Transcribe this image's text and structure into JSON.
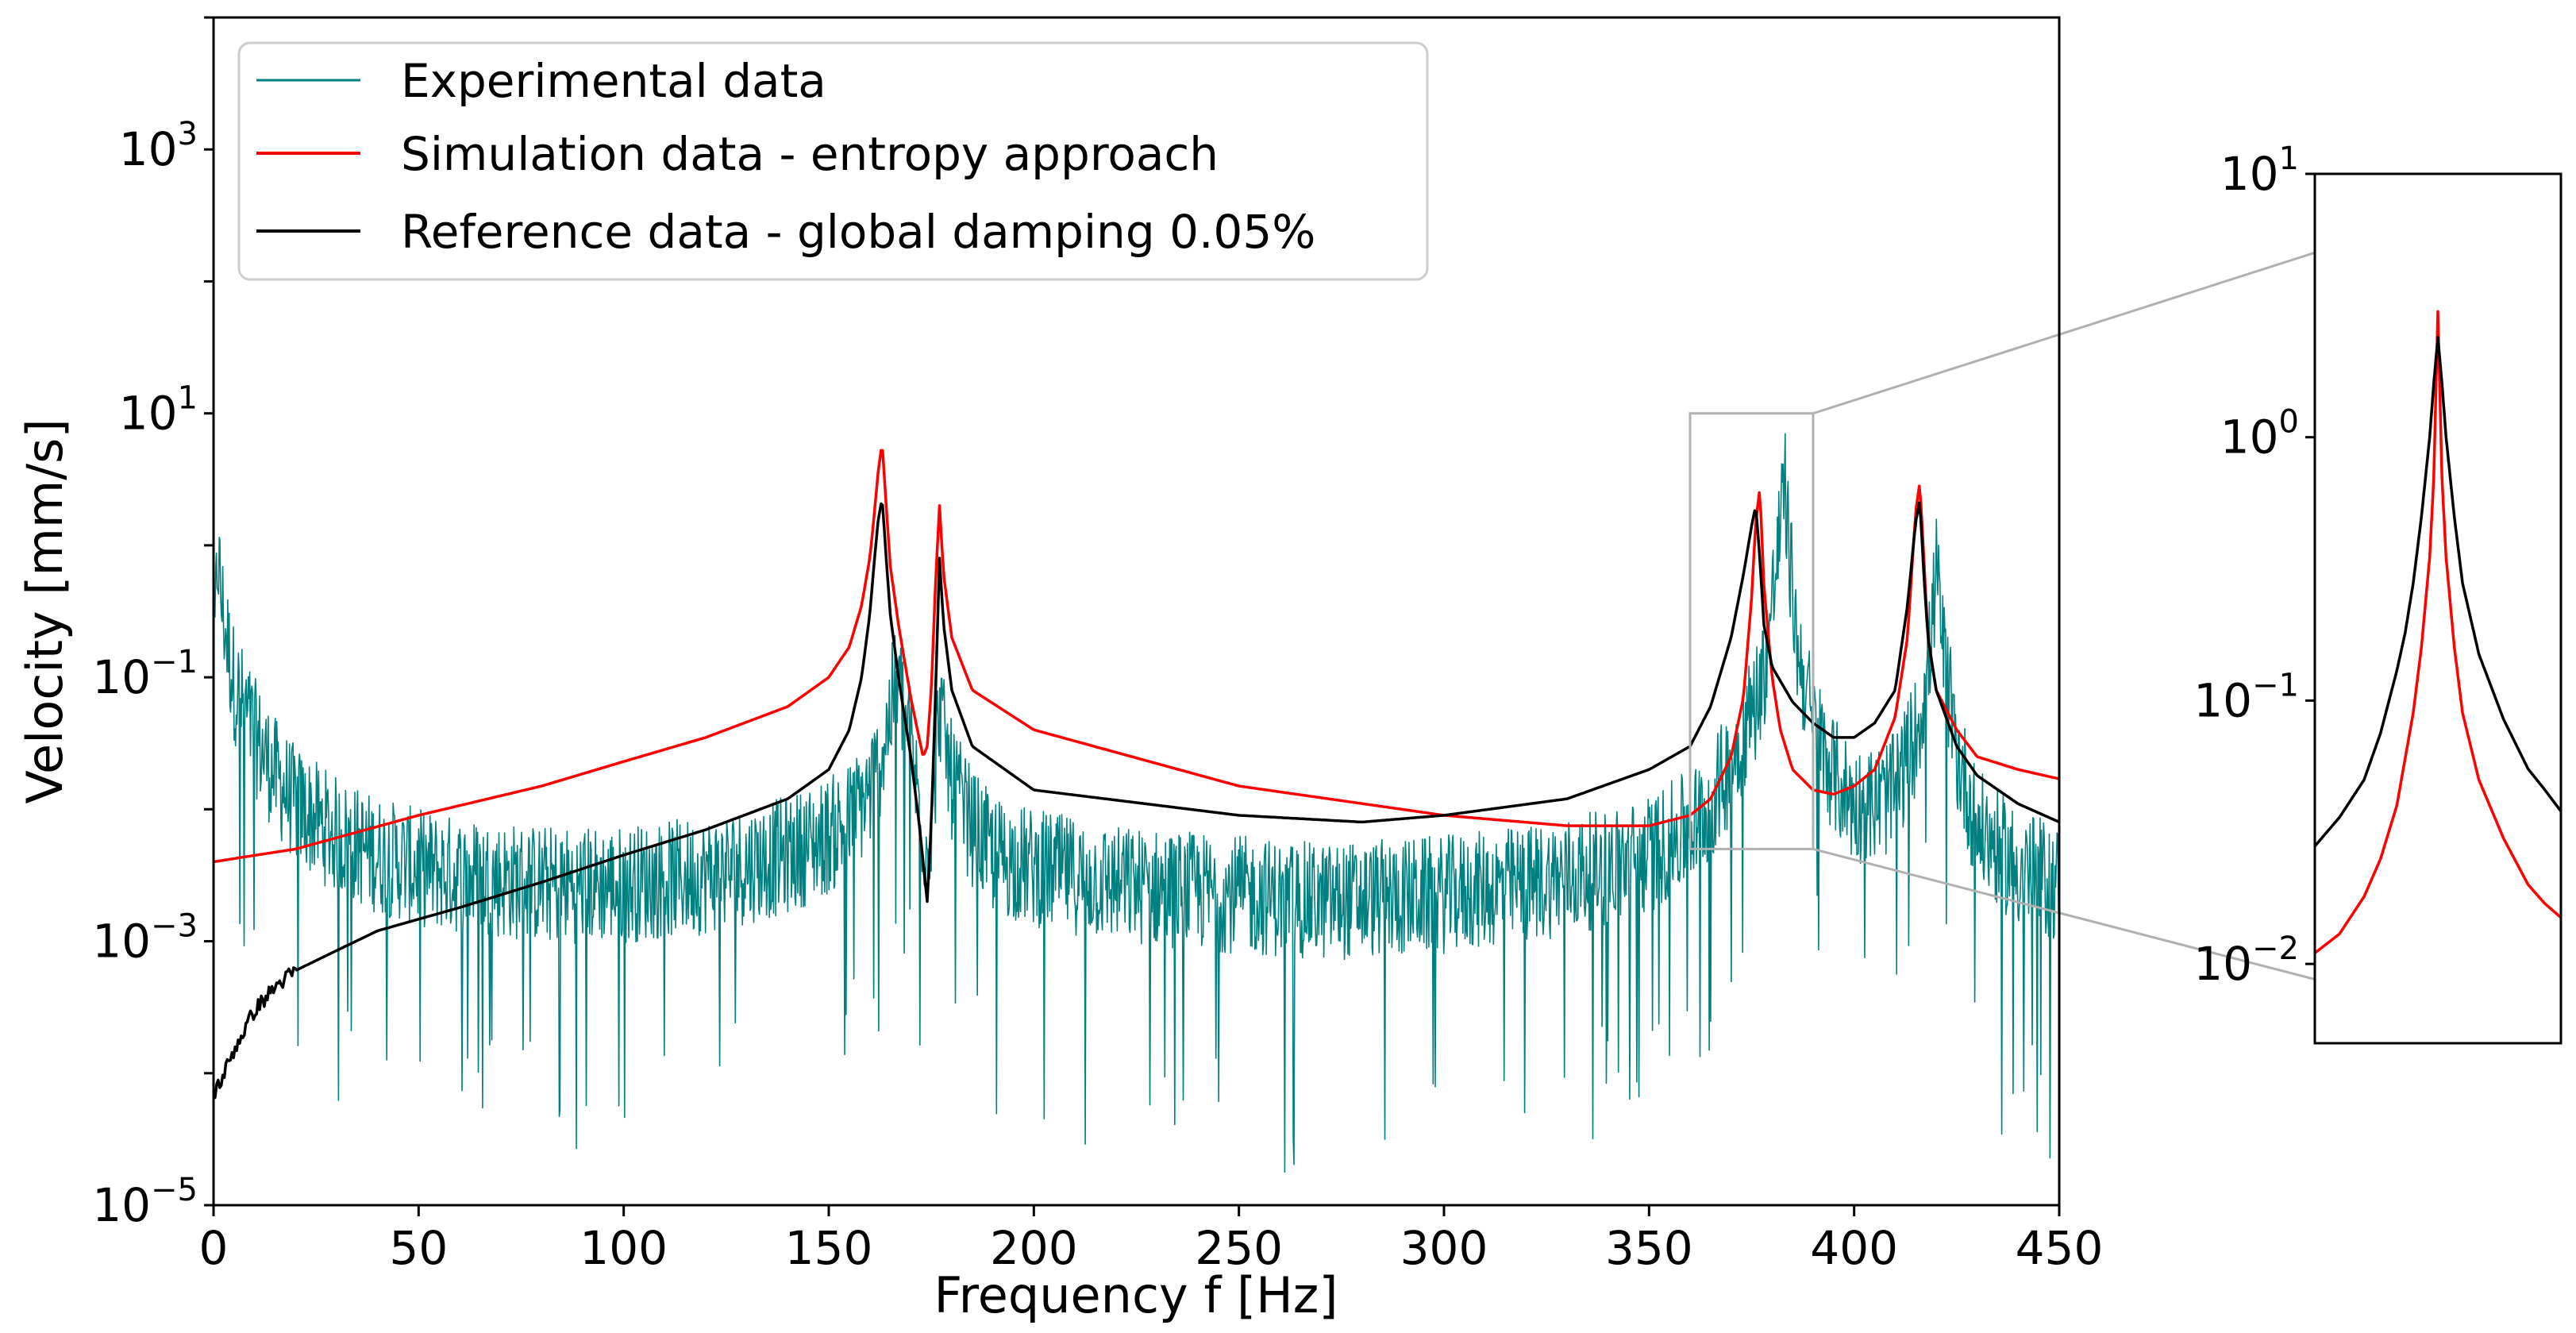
{
  "chart_data": [
    {
      "type": "line",
      "panel": "main",
      "xlabel": "Frequency f [Hz]",
      "ylabel": "Velocity [mm/s]",
      "xlim": [
        0,
        450
      ],
      "ylim": [
        1e-05,
        10000
      ],
      "y_scale": "log",
      "x_ticks": [
        "0",
        "50",
        "100",
        "150",
        "200",
        "250",
        "300",
        "350",
        "400",
        "450"
      ],
      "y_ticks": [
        {
          "base": "10",
          "exp": "−5",
          "value": 1e-05
        },
        {
          "base": "10",
          "exp": "−3",
          "value": 0.001
        },
        {
          "base": "10",
          "exp": "−1",
          "value": 0.1
        },
        {
          "base": "10",
          "exp": "1",
          "value": 10
        },
        {
          "base": "10",
          "exp": "3",
          "value": 1000
        }
      ],
      "grid": false,
      "legend_position": "top-left",
      "series": [
        {
          "name": "Experimental data",
          "color": "#008080",
          "noisy": true,
          "x": [
            0,
            1,
            2,
            3,
            4,
            5,
            10,
            15,
            20,
            30,
            40,
            50,
            60,
            80,
            100,
            120,
            140,
            150,
            155,
            160,
            163,
            165,
            166,
            167,
            168,
            170,
            172,
            174,
            176,
            177,
            178,
            180,
            185,
            190,
            200,
            220,
            250,
            270,
            300,
            320,
            340,
            350,
            360,
            365,
            370,
            375,
            378,
            380,
            382,
            383,
            384,
            386,
            390,
            395,
            400,
            405,
            410,
            415,
            418,
            420,
            422,
            425,
            430,
            440,
            450
          ],
          "y": [
            0.1,
            1.0,
            0.4,
            0.25,
            0.15,
            0.1,
            0.04,
            0.02,
            0.012,
            0.007,
            0.005,
            0.004,
            0.0035,
            0.003,
            0.003,
            0.0035,
            0.005,
            0.007,
            0.009,
            0.015,
            0.03,
            0.06,
            0.09,
            0.1,
            0.07,
            0.035,
            0.012,
            0.005,
            0.02,
            0.08,
            0.04,
            0.018,
            0.008,
            0.005,
            0.004,
            0.003,
            0.0025,
            0.0022,
            0.0025,
            0.003,
            0.004,
            0.005,
            0.008,
            0.012,
            0.025,
            0.06,
            0.12,
            0.4,
            1.5,
            3.5,
            1.2,
            0.2,
            0.05,
            0.02,
            0.012,
            0.012,
            0.015,
            0.04,
            0.12,
            0.7,
            0.15,
            0.03,
            0.008,
            0.004,
            0.003
          ]
        },
        {
          "name": "Simulation data - entropy approach",
          "color": "#ff0000",
          "noisy": false,
          "x": [
            0,
            20,
            50,
            80,
            100,
            120,
            140,
            150,
            155,
            158,
            160,
            161,
            162,
            163,
            164,
            165,
            167,
            170,
            172,
            173,
            174,
            175,
            176,
            177,
            178,
            180,
            185,
            200,
            250,
            300,
            330,
            350,
            360,
            365,
            370,
            373,
            375,
            376,
            377,
            378,
            380,
            382,
            385,
            390,
            395,
            400,
            405,
            410,
            413,
            415,
            416,
            417,
            418,
            420,
            425,
            430,
            440,
            450
          ],
          "y": [
            0.004,
            0.005,
            0.009,
            0.015,
            0.023,
            0.035,
            0.06,
            0.1,
            0.17,
            0.35,
            0.8,
            1.6,
            3.5,
            6.0,
            2.0,
            0.7,
            0.25,
            0.07,
            0.035,
            0.025,
            0.03,
            0.08,
            0.5,
            2.0,
            0.6,
            0.2,
            0.08,
            0.04,
            0.015,
            0.009,
            0.0075,
            0.0075,
            0.009,
            0.012,
            0.025,
            0.07,
            0.4,
            1.5,
            2.7,
            0.5,
            0.1,
            0.04,
            0.02,
            0.014,
            0.013,
            0.015,
            0.02,
            0.05,
            0.2,
            1.8,
            3.0,
            0.8,
            0.2,
            0.08,
            0.04,
            0.025,
            0.02,
            0.017
          ]
        },
        {
          "name": "Reference data - global damping 0.05%",
          "color": "#000000",
          "noisy": false,
          "x": [
            0,
            2,
            5,
            10,
            15,
            20,
            30,
            40,
            60,
            80,
            100,
            120,
            140,
            150,
            155,
            158,
            160,
            161,
            162,
            163,
            164,
            165,
            167,
            170,
            172,
            173,
            174,
            175,
            176,
            177,
            178,
            180,
            185,
            200,
            250,
            280,
            300,
            330,
            350,
            360,
            365,
            370,
            373,
            375,
            376,
            377,
            378,
            380,
            385,
            390,
            395,
            400,
            405,
            410,
            413,
            415,
            416,
            417,
            418,
            420,
            425,
            430,
            440,
            450
          ],
          "y": [
            7e-05,
            9e-05,
            0.00015,
            0.0003,
            0.00045,
            0.0006,
            0.00085,
            0.0012,
            0.0018,
            0.0028,
            0.0045,
            0.007,
            0.012,
            0.02,
            0.04,
            0.1,
            0.3,
            0.7,
            1.5,
            2.3,
            0.8,
            0.3,
            0.1,
            0.025,
            0.008,
            0.004,
            0.002,
            0.008,
            0.07,
            0.8,
            0.25,
            0.08,
            0.03,
            0.014,
            0.009,
            0.008,
            0.009,
            0.012,
            0.02,
            0.03,
            0.06,
            0.2,
            0.6,
            1.4,
            2.0,
            0.8,
            0.25,
            0.12,
            0.065,
            0.045,
            0.035,
            0.035,
            0.045,
            0.08,
            0.35,
            1.5,
            2.2,
            0.6,
            0.2,
            0.08,
            0.03,
            0.018,
            0.011,
            0.008
          ]
        }
      ]
    },
    {
      "type": "line",
      "panel": "inset",
      "source_region": {
        "xlim": [
          360,
          390
        ],
        "ylim": [
          0.005,
          10
        ]
      },
      "xlim": [
        360,
        390
      ],
      "ylim": [
        0.005,
        10
      ],
      "y_scale": "log",
      "y_ticks": [
        {
          "base": "10",
          "exp": "−2",
          "value": 0.01
        },
        {
          "base": "10",
          "exp": "−1",
          "value": 0.1
        },
        {
          "base": "10",
          "exp": "0",
          "value": 1
        },
        {
          "base": "10",
          "exp": "1",
          "value": 10
        }
      ],
      "grid": false,
      "series": [
        {
          "name": "Simulation data - entropy approach",
          "color": "#ff0000",
          "x": [
            360,
            363,
            366,
            368,
            370,
            371,
            372,
            373,
            374,
            374.5,
            375,
            375.5,
            376,
            377,
            378,
            380,
            383,
            386,
            388,
            390
          ],
          "y": [
            0.011,
            0.013,
            0.018,
            0.025,
            0.04,
            0.06,
            0.09,
            0.16,
            0.35,
            0.7,
            3.0,
            0.7,
            0.35,
            0.16,
            0.09,
            0.05,
            0.03,
            0.02,
            0.017,
            0.015
          ]
        },
        {
          "name": "Reference data - global damping 0.05%",
          "color": "#000000",
          "x": [
            360,
            363,
            366,
            368,
            370,
            371,
            372,
            373,
            374,
            374.5,
            375,
            375.5,
            376,
            377,
            378,
            380,
            383,
            386,
            388,
            390
          ],
          "y": [
            0.028,
            0.036,
            0.05,
            0.075,
            0.13,
            0.18,
            0.28,
            0.5,
            1.0,
            1.6,
            2.4,
            1.6,
            1.0,
            0.5,
            0.28,
            0.15,
            0.085,
            0.055,
            0.046,
            0.038
          ]
        }
      ]
    }
  ]
}
